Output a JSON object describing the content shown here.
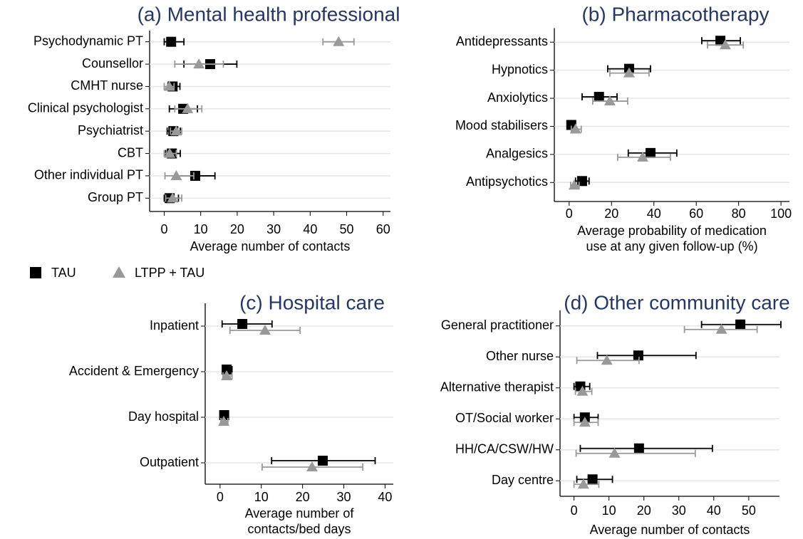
{
  "chart_data": [
    {
      "type": "dot-errorbar",
      "title": "(a) Mental health professional",
      "xlabel": [
        "Average number of contacts"
      ],
      "categories": [
        "Psychodynamic PT",
        "Counsellor",
        "CMHT nurse",
        "Clinical psychologist",
        "Psychiatrist",
        "CBT",
        "Other individual PT",
        "Group PT"
      ],
      "series": [
        {
          "name": "TAU",
          "color": "#000000",
          "marker": "square",
          "values": [
            1.9,
            12.6,
            2.3,
            5.2,
            2.5,
            2.1,
            8.5,
            1.5
          ],
          "low": [
            0,
            5.4,
            1,
            1.4,
            0.8,
            0.4,
            3.3,
            0
          ],
          "high": [
            5.4,
            19.9,
            4.3,
            9.1,
            4.4,
            4.4,
            13.9,
            3.9
          ]
        },
        {
          "name": "LTPP + TAU",
          "color": "#999999",
          "marker": "triangle",
          "values": [
            47.8,
            9.5,
            1.4,
            6.4,
            3.3,
            1.5,
            3.3,
            2.3
          ],
          "low": [
            43.5,
            2.9,
            0,
            2.9,
            1.7,
            0,
            0.2,
            0.4
          ],
          "high": [
            52,
            16.2,
            2.7,
            10.3,
            4.8,
            3.3,
            8.1,
            4.8
          ]
        }
      ],
      "xlim": [
        -4,
        62
      ],
      "xticks": [
        0,
        10,
        20,
        30,
        40,
        50,
        60
      ],
      "grid": true
    },
    {
      "type": "dot-errorbar",
      "title": "(b) Pharmacotherapy",
      "xlabel": [
        "Average probability of medication",
        "use at any given follow-up (%)"
      ],
      "categories": [
        "Antidepressants",
        "Hypnotics",
        "Anxiolytics",
        "Mood stabilisers",
        "Analgesics",
        "Antipsychotics"
      ],
      "series": [
        {
          "color": "#000000",
          "marker": "square",
          "values": [
            71.4,
            28.3,
            14.1,
            1,
            38.4,
            6.1
          ],
          "low": [
            62.6,
            18.2,
            6.1,
            0,
            27.9,
            3
          ],
          "high": [
            80.8,
            38.4,
            22.6,
            2.4,
            50.8,
            9.4
          ]
        },
        {
          "color": "#999999",
          "marker": "triangle",
          "values": [
            73.7,
            28.3,
            19.2,
            3,
            34.7,
            2.4
          ],
          "low": [
            65.3,
            19.2,
            11.1,
            1,
            22.9,
            0.7
          ],
          "high": [
            82.2,
            37.7,
            27.6,
            5.7,
            47.8,
            4.7
          ]
        }
      ],
      "xlim": [
        -7,
        104
      ],
      "xticks": [
        0,
        20,
        40,
        60,
        80,
        100
      ],
      "grid": true
    },
    {
      "type": "dot-errorbar",
      "title": "(c) Hospital care",
      "xlabel": [
        "Average number of",
        "contacts/bed days"
      ],
      "categories": [
        "Inpatient",
        "Accident & Emergency",
        "Day hospital",
        "Outpatient"
      ],
      "series": [
        {
          "color": "#000000",
          "marker": "square",
          "values": [
            5.4,
            1.6,
            1,
            24.9
          ],
          "low": [
            0.5,
            0.7,
            0.3,
            12.5
          ],
          "high": [
            12.6,
            2.9,
            1.9,
            37.6
          ]
        },
        {
          "color": "#999999",
          "marker": "triangle",
          "values": [
            10.9,
            1.6,
            0.9,
            22.3
          ],
          "low": [
            2.4,
            0.7,
            0.2,
            10.2
          ],
          "high": [
            19.4,
            2.9,
            1.9,
            34.6
          ]
        }
      ],
      "xlim": [
        -3.6,
        42
      ],
      "xticks": [
        0,
        10,
        20,
        30,
        40
      ],
      "grid": true
    },
    {
      "type": "dot-errorbar",
      "title": "(d) Other community care",
      "xlabel": [
        "Average number of contacts"
      ],
      "categories": [
        "General practitioner",
        "Other nurse",
        "Alternative therapist",
        "OT/Social worker",
        "HH/CA/CSW/HW",
        "Day centre"
      ],
      "series": [
        {
          "color": "#000000",
          "marker": "square",
          "values": [
            47.6,
            18.4,
            1.8,
            3.1,
            18.6,
            5.3
          ],
          "low": [
            36.5,
            6.7,
            0,
            0,
            1.8,
            0.8
          ],
          "high": [
            59.2,
            34.9,
            4.5,
            6.9,
            39.6,
            11
          ]
        },
        {
          "color": "#999999",
          "marker": "triangle",
          "values": [
            42.2,
            9.4,
            2.4,
            3.1,
            11.6,
            2.7
          ],
          "low": [
            31.6,
            0.8,
            0.4,
            0,
            0.6,
            0
          ],
          "high": [
            52.4,
            18.6,
            5.1,
            6.9,
            34.7,
            7.1
          ]
        }
      ],
      "xlim": [
        -4,
        58.8
      ],
      "xticks": [
        0,
        10,
        20,
        30,
        40,
        50
      ],
      "grid": true
    }
  ]
}
